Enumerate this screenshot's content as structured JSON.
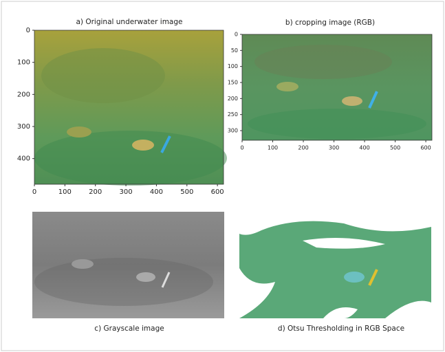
{
  "panels": [
    {
      "title": "a) Original underwater image",
      "xlim": [
        0,
        620
      ],
      "ylim": [
        0,
        480
      ],
      "xticks": [
        0,
        100,
        200,
        300,
        400,
        500,
        600
      ],
      "yticks": [
        0,
        100,
        200,
        300,
        400
      ]
    },
    {
      "title": "b) cropping image (RGB)",
      "xlim": [
        0,
        620
      ],
      "ylim": [
        0,
        330
      ],
      "xticks": [
        0,
        100,
        200,
        300,
        400,
        500,
        600
      ],
      "yticks": [
        0,
        50,
        100,
        150,
        200,
        250,
        300
      ]
    },
    {
      "title": "c) Grayscale image"
    },
    {
      "title": "d) Otsu Thresholding in RGB Space"
    }
  ]
}
